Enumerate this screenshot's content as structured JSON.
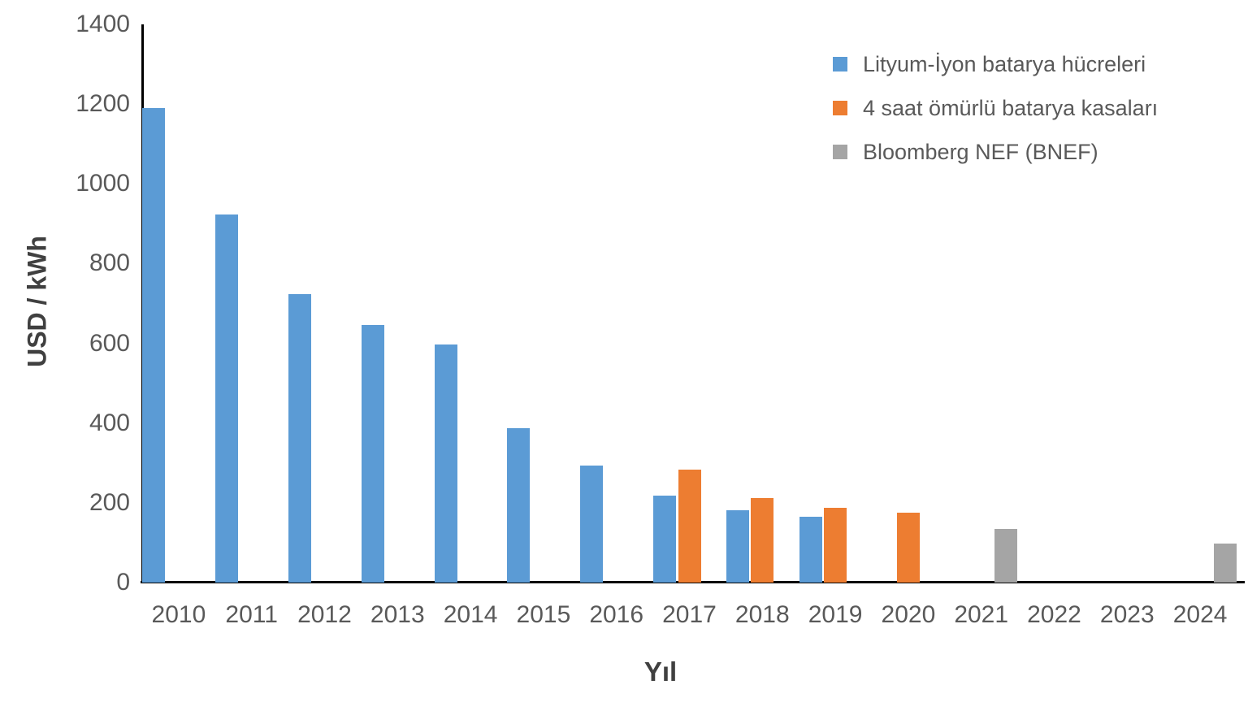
{
  "chart_data": {
    "type": "bar",
    "title": "",
    "xlabel": "Yıl",
    "ylabel": "USD / kWh",
    "ylim": [
      0,
      1400
    ],
    "ytick_step": 200,
    "yticks": [
      0,
      200,
      400,
      600,
      800,
      1000,
      1200,
      1400
    ],
    "grid": false,
    "legend_position": "top-right",
    "categories": [
      "2010",
      "2011",
      "2012",
      "2013",
      "2014",
      "2015",
      "2016",
      "2017",
      "2018",
      "2019",
      "2020",
      "2021",
      "2022",
      "2023",
      "2024"
    ],
    "series": [
      {
        "name": "Lityum-İyon batarya hücreleri",
        "color": "#5B9BD5",
        "values": [
          1191,
          924,
          723,
          646,
          597,
          387,
          293,
          218,
          181,
          165,
          null,
          null,
          null,
          null,
          null
        ]
      },
      {
        "name": "4 saat ömürlü batarya kasaları",
        "color": "#ED7D31",
        "values": [
          null,
          null,
          null,
          null,
          null,
          null,
          null,
          283,
          211,
          187,
          176,
          null,
          null,
          null,
          null
        ]
      },
      {
        "name": "Bloomberg NEF (BNEF)",
        "color": "#A5A5A5",
        "values": [
          null,
          null,
          null,
          null,
          null,
          null,
          null,
          null,
          null,
          null,
          null,
          134,
          null,
          null,
          98
        ]
      }
    ]
  },
  "colors": {
    "axis_line": "#000000",
    "tick_label": "#595959",
    "axis_title": "#404040",
    "background": "#ffffff"
  }
}
